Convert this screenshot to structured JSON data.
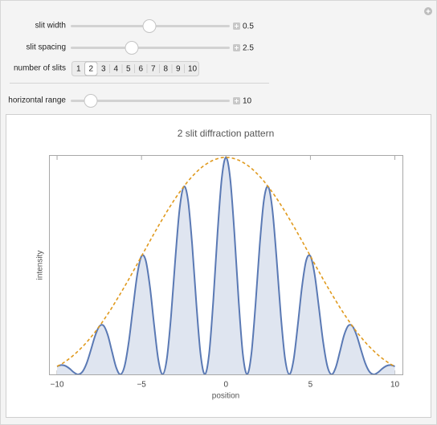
{
  "controls": {
    "sliders": [
      {
        "label": "slit width",
        "value": 0.5
      },
      {
        "label": "slit spacing",
        "value": 2.5
      },
      {
        "label": "horizontal range",
        "value": 10
      }
    ],
    "slits": {
      "label": "number of slits",
      "options": [
        1,
        2,
        3,
        4,
        5,
        6,
        7,
        8,
        9,
        10
      ],
      "selected": 2
    }
  },
  "chart_data": {
    "type": "line",
    "title": "2 slit diffraction pattern",
    "x_label": "position",
    "y_label": "intensity",
    "x": [
      -10,
      -9.75,
      -9.5,
      -9.25,
      -9,
      -8.75,
      -8.5,
      -8.25,
      -8,
      -7.75,
      -7.5,
      -7.25,
      -7,
      -6.75,
      -6.5,
      -6.25,
      -6,
      -5.75,
      -5.5,
      -5.25,
      -5,
      -4.75,
      -4.5,
      -4.25,
      -4,
      -3.75,
      -3.5,
      -3.25,
      -3,
      -2.75,
      -2.5,
      -2.25,
      -2,
      -1.75,
      -1.5,
      -1.25,
      -1,
      -0.75,
      -0.5,
      -0.25,
      0,
      0.25,
      0.5,
      0.75,
      1,
      1.25,
      1.5,
      1.75,
      2,
      2.25,
      2.5,
      2.75,
      3,
      3.25,
      3.5,
      3.75,
      4,
      4.25,
      4.5,
      4.75,
      5,
      5.25,
      5.5,
      5.75,
      6,
      6.25,
      6.5,
      6.75,
      7,
      7.25,
      7.5,
      7.75,
      8,
      8.25,
      8.5,
      8.75,
      9,
      9.25,
      9.5,
      9.75,
      10
    ],
    "series": [
      {
        "color": "#5a79b4",
        "fill": "#dfe5f0",
        "values": [
          0.037,
          0.043,
          0.039,
          0.026,
          0.009,
          0,
          0.012,
          0.051,
          0.112,
          0.177,
          0.221,
          0.225,
          0.182,
          0.106,
          0.032,
          0,
          0.039,
          0.152,
          0.31,
          0.461,
          0.545,
          0.525,
          0.403,
          0.225,
          0.065,
          0,
          0.072,
          0.27,
          0.531,
          0.759,
          0.865,
          0.805,
          0.597,
          0.322,
          0.091,
          0,
          0.093,
          0.341,
          0.651,
          0.903,
          1,
          0.903,
          0.651,
          0.341,
          0.093,
          0,
          0.091,
          0.322,
          0.597,
          0.805,
          0.865,
          0.759,
          0.531,
          0.27,
          0.072,
          0,
          0.065,
          0.225,
          0.403,
          0.525,
          0.545,
          0.461,
          0.31,
          0.152,
          0.039,
          0,
          0.032,
          0.106,
          0.182,
          0.225,
          0.221,
          0.177,
          0.112,
          0.051,
          0.012,
          0,
          0.009,
          0.026,
          0.039,
          0.043,
          0.037
        ]
      },
      {
        "color": "#e09a1e",
        "dashed": true,
        "values": [
          0.037,
          0.047,
          0.06,
          0.074,
          0.09,
          0.108,
          0.127,
          0.148,
          0.171,
          0.195,
          0.221,
          0.249,
          0.278,
          0.308,
          0.34,
          0.372,
          0.405,
          0.439,
          0.474,
          0.509,
          0.545,
          0.58,
          0.615,
          0.65,
          0.684,
          0.717,
          0.75,
          0.781,
          0.811,
          0.839,
          0.865,
          0.89,
          0.912,
          0.932,
          0.95,
          0.965,
          0.977,
          0.987,
          0.994,
          0.999,
          1,
          0.999,
          0.994,
          0.987,
          0.977,
          0.965,
          0.95,
          0.932,
          0.912,
          0.89,
          0.865,
          0.839,
          0.811,
          0.781,
          0.75,
          0.717,
          0.684,
          0.65,
          0.615,
          0.58,
          0.545,
          0.509,
          0.474,
          0.439,
          0.405,
          0.372,
          0.34,
          0.308,
          0.278,
          0.249,
          0.221,
          0.195,
          0.171,
          0.148,
          0.127,
          0.108,
          0.09,
          0.074,
          0.06,
          0.047,
          0.037
        ]
      }
    ],
    "xlim": [
      -10.43,
      10.45
    ],
    "ylim": [
      0,
      1.007
    ],
    "xticks": [
      {
        "value": -10,
        "label": "−10"
      },
      {
        "value": -5,
        "label": "−5"
      },
      0,
      5,
      10
    ]
  }
}
